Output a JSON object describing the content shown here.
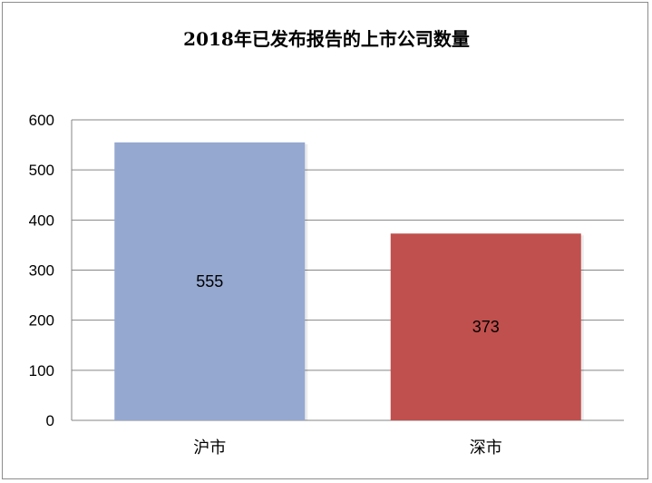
{
  "chart_data": {
    "type": "bar",
    "title": "2018年已发布报告的上市公司数量",
    "categories": [
      "沪市",
      "深市"
    ],
    "values": [
      555,
      373
    ],
    "data_labels": [
      "555",
      "373"
    ],
    "ylim": [
      0,
      600
    ],
    "yticks": [
      "0",
      "100",
      "200",
      "300",
      "400",
      "500",
      "600"
    ],
    "ytick_values": [
      0,
      100,
      200,
      300,
      400,
      500,
      600
    ],
    "grid": true,
    "legend": "none",
    "colors": [
      "#95a8d0",
      "#c0504d"
    ],
    "xlabel": "",
    "ylabel": ""
  }
}
